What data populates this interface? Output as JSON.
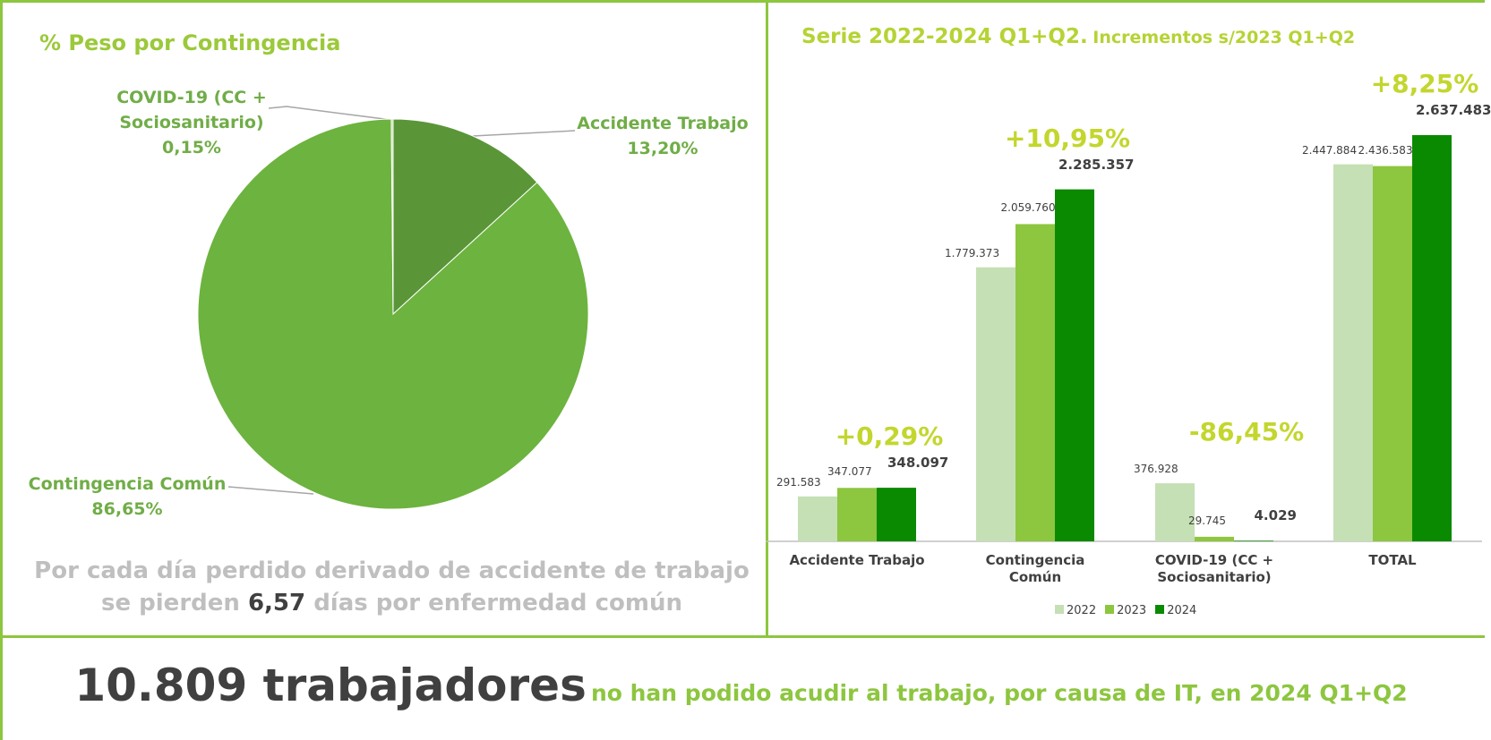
{
  "chart_data": [
    {
      "type": "pie",
      "title": "% Peso por Contingencia",
      "categories": [
        "Accidente Trabajo",
        "Contingencia Común",
        "COVID-19 (CC + Sociosanitario)"
      ],
      "values": [
        13.2,
        86.65,
        0.15
      ],
      "value_labels": [
        "13,20%",
        "86,65%",
        "0,15%"
      ],
      "colors": [
        "#5a9638",
        "#6db33f",
        "#b7d99c"
      ]
    },
    {
      "type": "bar",
      "title": "Serie 2022-2024 Q1+Q2.",
      "subtitle": "Incrementos s/2023 Q1+Q2",
      "categories": [
        "Accidente Trabajo",
        "Contingencia Común",
        "COVID-19 (CC + Sociosanitario)",
        "TOTAL"
      ],
      "series": [
        {
          "name": "2022",
          "color": "#c5e0b4",
          "values": [
            291583,
            1779373,
            376928,
            2447884
          ],
          "value_labels": [
            "291.583",
            "1.779.373",
            "376.928",
            "2.447.884"
          ]
        },
        {
          "name": "2023",
          "color": "#8dc63f",
          "values": [
            347077,
            2059760,
            29745,
            2436583
          ],
          "value_labels": [
            "347.077",
            "2.059.760",
            "29.745",
            "2.436.583"
          ]
        },
        {
          "name": "2024",
          "color": "#0a8a00",
          "values": [
            348097,
            2285357,
            4029,
            2637483
          ],
          "value_labels": [
            "348.097",
            "2.285.357",
            "4.029",
            "2.637.483"
          ]
        }
      ],
      "annotations": [
        "+0,29%",
        "+10,95%",
        "-86,45%",
        "+8,25%"
      ],
      "legend": "bottom"
    }
  ],
  "note": [
    "Por cada día perdido derivado de accidente de trabajo se pierden",
    "6,57",
    "días por enfermedad común"
  ],
  "banner": [
    "10.809 trabajadores",
    "no han podido acudir al trabajo, por causa de IT, en 2024 Q1+Q2"
  ]
}
